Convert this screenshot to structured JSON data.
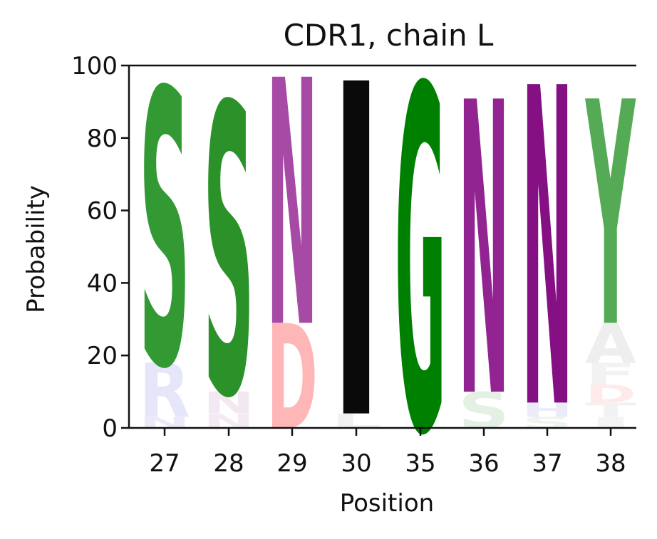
{
  "chart_data": {
    "type": "sequence-logo",
    "title": "CDR1, chain L",
    "xlabel": "Position",
    "ylabel": "Probability",
    "ylim": [
      0,
      100
    ],
    "yticks": [
      "0",
      "20",
      "40",
      "60",
      "80",
      "100"
    ],
    "categories": [
      "27",
      "28",
      "29",
      "30",
      "35",
      "36",
      "37",
      "38"
    ],
    "positions": [
      {
        "label": "27",
        "letters": [
          {
            "letter": "N",
            "value": 3,
            "color": "#eaeaf8"
          },
          {
            "letter": "R",
            "value": 15,
            "color": "#e6e6fa"
          },
          {
            "letter": "S",
            "value": 76,
            "color": "#339933"
          }
        ]
      },
      {
        "label": "28",
        "letters": [
          {
            "letter": "N",
            "value": 4,
            "color": "#f3eaf3"
          },
          {
            "letter": "N",
            "value": 6,
            "color": "#f1e8f1"
          },
          {
            "letter": "S",
            "value": 80,
            "color": "#2b9229"
          }
        ]
      },
      {
        "label": "29",
        "letters": [
          {
            "letter": "D",
            "value": 29,
            "color": "#ffb6b6"
          },
          {
            "letter": "N",
            "value": 68,
            "color": "#a64aa6"
          }
        ]
      },
      {
        "label": "30",
        "letters": [
          {
            "letter": "L",
            "value": 4,
            "color": "#f0f0f0"
          },
          {
            "letter": "I",
            "value": 92,
            "color": "#0a0a0a"
          }
        ]
      },
      {
        "label": "35",
        "letters": [
          {
            "letter": "G",
            "value": 95,
            "color": "#008000"
          }
        ]
      },
      {
        "label": "36",
        "letters": [
          {
            "letter": "S",
            "value": 10,
            "color": "#e4f0e4"
          },
          {
            "letter": "N",
            "value": 81,
            "color": "#922492"
          }
        ]
      },
      {
        "label": "37",
        "letters": [
          {
            "letter": "S",
            "value": 3,
            "color": "#eef4ee"
          },
          {
            "letter": "H",
            "value": 4,
            "color": "#ececf8"
          },
          {
            "letter": "N",
            "value": 88,
            "color": "#841084"
          }
        ]
      },
      {
        "label": "38",
        "letters": [
          {
            "letter": "I",
            "value": 3,
            "color": "#f4f4f4"
          },
          {
            "letter": "T",
            "value": 4,
            "color": "#f2f2f2"
          },
          {
            "letter": "D",
            "value": 5,
            "color": "#ffeaea"
          },
          {
            "letter": "F",
            "value": 6,
            "color": "#f2f2f2"
          },
          {
            "letter": "A",
            "value": 11,
            "color": "#eeeeee"
          },
          {
            "letter": "Y",
            "value": 62,
            "color": "#55aa55"
          }
        ]
      }
    ]
  }
}
